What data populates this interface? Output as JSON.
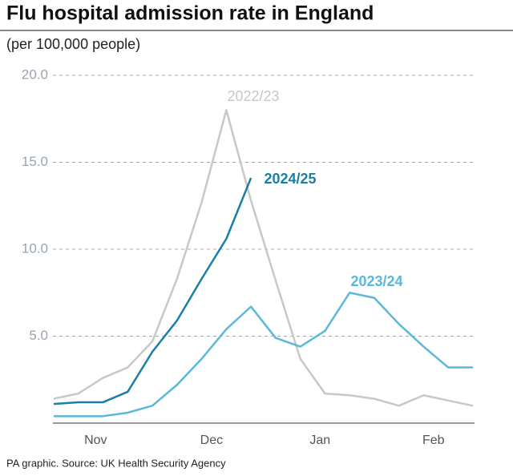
{
  "chart_data": {
    "type": "line",
    "title": "Flu hospital admission rate in England",
    "subtitle": "(per 100,000 people)",
    "source": "PA graphic. Source: UK Health Security Agency",
    "x": [
      0,
      1,
      2,
      3,
      4,
      5,
      6,
      7,
      8,
      9,
      10,
      11,
      12,
      13,
      14,
      15,
      16,
      17
    ],
    "xlim": [
      0,
      17
    ],
    "xticks": [
      {
        "value": 1.7,
        "label": "Nov"
      },
      {
        "value": 6.4,
        "label": "Dec"
      },
      {
        "value": 10.8,
        "label": "Jan"
      },
      {
        "value": 15.4,
        "label": "Feb"
      }
    ],
    "ylim": [
      0,
      20
    ],
    "yticks": [
      {
        "value": 5,
        "label": "5.0"
      },
      {
        "value": 10,
        "label": "10.0"
      },
      {
        "value": 15,
        "label": "15.0"
      },
      {
        "value": 20,
        "label": "20.0"
      }
    ],
    "grid": true,
    "series": [
      {
        "name": "2022/23",
        "color": "#c8c8c8",
        "values": [
          1.4,
          1.7,
          2.6,
          3.2,
          4.7,
          8.3,
          12.7,
          18.0,
          12.8,
          8.2,
          3.7,
          1.7,
          1.6,
          1.4,
          1.0,
          1.6,
          1.3,
          1.0
        ]
      },
      {
        "name": "2023/24",
        "color": "#5bb8d8",
        "values": [
          0.4,
          0.4,
          0.4,
          0.6,
          1.0,
          2.2,
          3.7,
          5.4,
          6.7,
          4.9,
          4.4,
          5.3,
          7.5,
          7.2,
          5.7,
          4.4,
          3.2,
          3.2
        ]
      },
      {
        "name": "2024/25",
        "color": "#1a7fa8",
        "values": [
          1.1,
          1.2,
          1.2,
          1.8,
          4.1,
          5.9,
          8.3,
          10.6,
          14.1,
          null,
          null,
          null,
          null,
          null,
          null,
          null,
          null,
          null
        ]
      }
    ]
  }
}
